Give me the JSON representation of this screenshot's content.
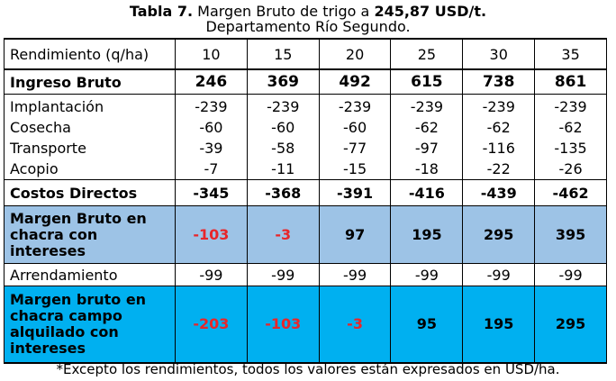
{
  "title": {
    "label": "Tabla 7.",
    "text": "Margen Bruto de trigo a",
    "price": "245,87 USD/t.",
    "subtitle": "Departamento Río Segundo."
  },
  "table": {
    "header": {
      "label": "Rendimiento (q/ha)",
      "values": [
        "10",
        "15",
        "20",
        "25",
        "30",
        "35"
      ]
    },
    "ingreso_bruto": {
      "label": "Ingreso Bruto",
      "values": [
        "246",
        "369",
        "492",
        "615",
        "738",
        "861"
      ]
    },
    "costs": [
      {
        "label": "Implantación",
        "values": [
          "-239",
          "-239",
          "-239",
          "-239",
          "-239",
          "-239"
        ]
      },
      {
        "label": "Cosecha",
        "values": [
          "-60",
          "-60",
          "-60",
          "-62",
          "-62",
          "-62"
        ]
      },
      {
        "label": "Transporte",
        "values": [
          "-39",
          "-58",
          "-77",
          "-97",
          "-116",
          "-135"
        ]
      },
      {
        "label": "Acopio",
        "values": [
          "-7",
          "-11",
          "-15",
          "-18",
          "-22",
          "-26"
        ]
      }
    ],
    "costos_directos": {
      "label": "Costos Directos",
      "values": [
        "-345",
        "-368",
        "-391",
        "-416",
        "-439",
        "-462"
      ]
    },
    "margen_bruto": {
      "label_lines": [
        "Margen Bruto en",
        "chacra con",
        "intereses"
      ],
      "values": [
        "-103",
        "-3",
        "97",
        "195",
        "295",
        "395"
      ]
    },
    "arrendamiento": {
      "label": "Arrendamiento",
      "values": [
        "-99",
        "-99",
        "-99",
        "-99",
        "-99",
        "-99"
      ]
    },
    "margen_alquilado": {
      "label_lines": [
        "Margen bruto en",
        "chacra campo",
        "alquilado con",
        "intereses"
      ],
      "values": [
        "-203",
        "-103",
        "-3",
        "95",
        "195",
        "295"
      ]
    }
  },
  "footnote": "*Excepto los rendimientos, todos los valores están expresados en USD/ha.",
  "colors": {
    "margen_bruto_bg": "#9dc3e6",
    "margen_alquilado_bg": "#00b0f0",
    "negative_text": "#e8262a"
  }
}
